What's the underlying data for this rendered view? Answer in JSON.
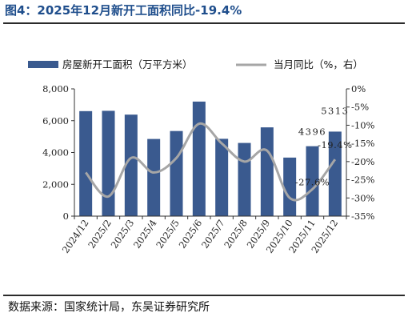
{
  "header": {
    "title": "图4：2025年12月新开工面积同比-19.4%"
  },
  "footer": {
    "source": "数据来源：国家统计局，东吴证券研究所"
  },
  "colors": {
    "bar": "#3a5a8f",
    "line": "#a6a6a6",
    "title": "#1f4e8c"
  },
  "chart_data": {
    "type": "bar",
    "categories": [
      "2024/12",
      "2025/2",
      "2025/3",
      "2025/4",
      "2025/5",
      "2025/6",
      "2025/7",
      "2025/8",
      "2025/9",
      "2025/10",
      "2025/11",
      "2025/12"
    ],
    "series": [
      {
        "name": "房屋新开工面积（万平方米）",
        "type": "bar",
        "axis": "left",
        "values": [
          6600,
          6620,
          6380,
          4850,
          5350,
          7200,
          4860,
          4600,
          5580,
          3680,
          4396,
          5313
        ]
      },
      {
        "name": "当月同比（%，右）",
        "type": "line",
        "axis": "right",
        "values": [
          -23.0,
          -29.6,
          -19.0,
          -23.0,
          -19.0,
          -9.6,
          -15.0,
          -20.0,
          -17.0,
          -30.0,
          -27.6,
          -19.4
        ]
      }
    ],
    "left_axis": {
      "min": 0,
      "max": 8000,
      "ticks": [
        "0",
        "2,000",
        "4,000",
        "6,000",
        "8,000"
      ],
      "tick_values": [
        0,
        2000,
        4000,
        6000,
        8000
      ]
    },
    "right_axis": {
      "min": -35,
      "max": 0,
      "ticks": [
        "0%",
        "-5%",
        "-10%",
        "-15%",
        "-20%",
        "-25%",
        "-30%",
        "-35%"
      ],
      "tick_values": [
        0,
        -5,
        -10,
        -15,
        -20,
        -25,
        -30,
        -35
      ]
    },
    "data_labels": [
      {
        "text": "5313",
        "series": 0,
        "index": 11
      },
      {
        "text": "4396",
        "series": 0,
        "index": 10
      },
      {
        "text": "-19.4%",
        "series": 1,
        "index": 11
      },
      {
        "text": "-27.6%",
        "series": 1,
        "index": 10
      }
    ],
    "legend_position": "top",
    "grid": false
  }
}
